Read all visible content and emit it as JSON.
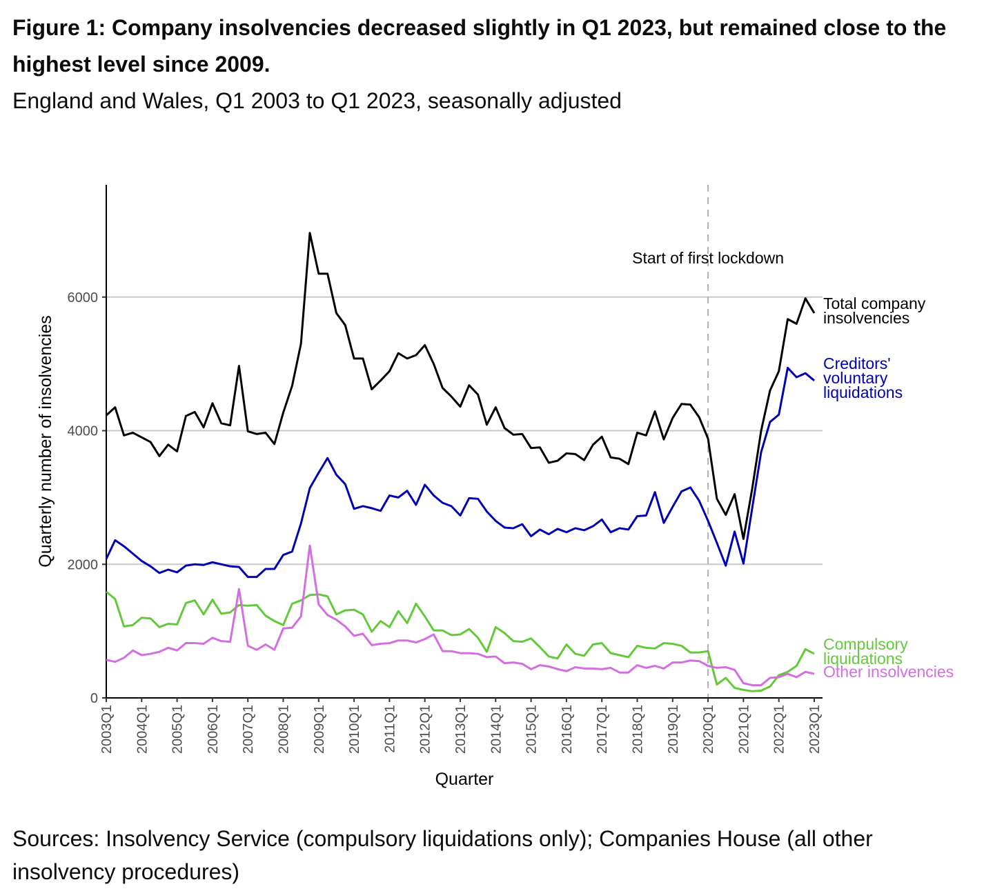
{
  "chart_data": {
    "type": "line",
    "title": "Figure 1: Company insolvencies decreased slightly in Q1 2023, but remained close to the highest level since 2009.",
    "subtitle": "England and Wales, Q1 2003 to Q1 2023, seasonally adjusted",
    "source": "Sources: Insolvency Service (compulsory liquidations only); Companies House (all other insolvency procedures)",
    "x_label": "Quarter",
    "y_label": "Quarterly number of insolvencies",
    "annotation": {
      "text": "Start of first lockdown",
      "x": "2020Q1"
    },
    "categories": [
      "2003Q1",
      null,
      null,
      null,
      "2004Q1",
      null,
      null,
      null,
      "2005Q1",
      null,
      null,
      null,
      "2006Q1",
      null,
      null,
      null,
      "2007Q1",
      null,
      null,
      null,
      "2008Q1",
      null,
      null,
      null,
      "2009Q1",
      null,
      null,
      null,
      "2010Q1",
      null,
      null,
      null,
      "2011Q1",
      null,
      null,
      null,
      "2012Q1",
      null,
      null,
      null,
      "2013Q1",
      null,
      null,
      null,
      "2014Q1",
      null,
      null,
      null,
      "2015Q1",
      null,
      null,
      null,
      "2016Q1",
      null,
      null,
      null,
      "2017Q1",
      null,
      null,
      null,
      "2018Q1",
      null,
      null,
      null,
      "2019Q1",
      null,
      null,
      null,
      "2020Q1",
      null,
      null,
      null,
      "2021Q1",
      null,
      null,
      null,
      "2022Q1",
      null,
      null,
      null,
      "2023Q1"
    ],
    "ylim": [
      0,
      7680
    ],
    "yticks": [
      0,
      2000,
      4000,
      6000
    ],
    "grid": true,
    "series": [
      {
        "name": "Total company insolvencies",
        "color": "#000000",
        "values": [
          4230,
          4350,
          3930,
          3970,
          3900,
          3830,
          3620,
          3790,
          3690,
          4220,
          4280,
          4050,
          4410,
          4110,
          4080,
          4970,
          3990,
          3950,
          3970,
          3800,
          4270,
          4670,
          5300,
          6960,
          6350,
          6350,
          5760,
          5580,
          5080,
          5080,
          4620,
          4750,
          4890,
          5160,
          5080,
          5130,
          5280,
          5000,
          4640,
          4510,
          4360,
          4680,
          4540,
          4090,
          4350,
          4040,
          3940,
          3950,
          3740,
          3750,
          3520,
          3550,
          3660,
          3650,
          3560,
          3790,
          3910,
          3600,
          3580,
          3500,
          3970,
          3930,
          4290,
          3870,
          4190,
          4400,
          4390,
          4200,
          3880,
          2980,
          2740,
          3050,
          2380,
          3140,
          4000,
          4600,
          4890,
          5670,
          5600,
          5980,
          5760
        ]
      },
      {
        "name": "Creditors' voluntary liquidations",
        "color": "#0000b4",
        "values": [
          2080,
          2360,
          2270,
          2160,
          2050,
          1970,
          1870,
          1920,
          1880,
          1980,
          2000,
          1990,
          2030,
          2000,
          1970,
          1960,
          1810,
          1810,
          1930,
          1930,
          2140,
          2190,
          2610,
          3140,
          3370,
          3590,
          3340,
          3200,
          2830,
          2870,
          2840,
          2800,
          3030,
          3000,
          3100,
          2890,
          3190,
          3030,
          2920,
          2870,
          2730,
          2990,
          2980,
          2790,
          2650,
          2550,
          2540,
          2600,
          2420,
          2520,
          2450,
          2530,
          2480,
          2540,
          2510,
          2570,
          2670,
          2480,
          2540,
          2520,
          2720,
          2730,
          3080,
          2620,
          2860,
          3090,
          3150,
          2950,
          2650,
          2320,
          1980,
          2490,
          2010,
          2850,
          3680,
          4130,
          4240,
          4940,
          4800,
          4860,
          4750
        ]
      },
      {
        "name": "Compulsory liquidations",
        "color": "#63c93a",
        "values": [
          1590,
          1480,
          1070,
          1090,
          1200,
          1190,
          1060,
          1110,
          1100,
          1420,
          1460,
          1250,
          1470,
          1260,
          1280,
          1390,
          1380,
          1390,
          1230,
          1150,
          1090,
          1410,
          1460,
          1540,
          1550,
          1520,
          1250,
          1310,
          1320,
          1250,
          990,
          1150,
          1060,
          1300,
          1120,
          1410,
          1220,
          1010,
          1010,
          940,
          950,
          1030,
          900,
          690,
          1060,
          970,
          850,
          840,
          890,
          760,
          620,
          590,
          800,
          660,
          630,
          800,
          820,
          670,
          640,
          610,
          780,
          750,
          740,
          820,
          810,
          780,
          680,
          680,
          700,
          200,
          300,
          150,
          120,
          100,
          110,
          170,
          340,
          390,
          480,
          730,
          660
        ]
      },
      {
        "name": "Other insolvencies",
        "color": "#d36ee0",
        "values": [
          570,
          540,
          600,
          710,
          640,
          660,
          690,
          750,
          710,
          820,
          820,
          810,
          900,
          850,
          840,
          1630,
          780,
          720,
          800,
          720,
          1040,
          1050,
          1220,
          2280,
          1400,
          1240,
          1170,
          1070,
          930,
          960,
          790,
          810,
          820,
          860,
          860,
          830,
          880,
          950,
          700,
          700,
          670,
          670,
          660,
          610,
          620,
          520,
          530,
          510,
          430,
          490,
          470,
          430,
          400,
          460,
          440,
          440,
          430,
          450,
          380,
          380,
          490,
          450,
          480,
          440,
          530,
          530,
          560,
          550,
          480,
          450,
          460,
          420,
          220,
          190,
          190,
          300,
          310,
          360,
          310,
          390,
          360
        ]
      }
    ]
  }
}
